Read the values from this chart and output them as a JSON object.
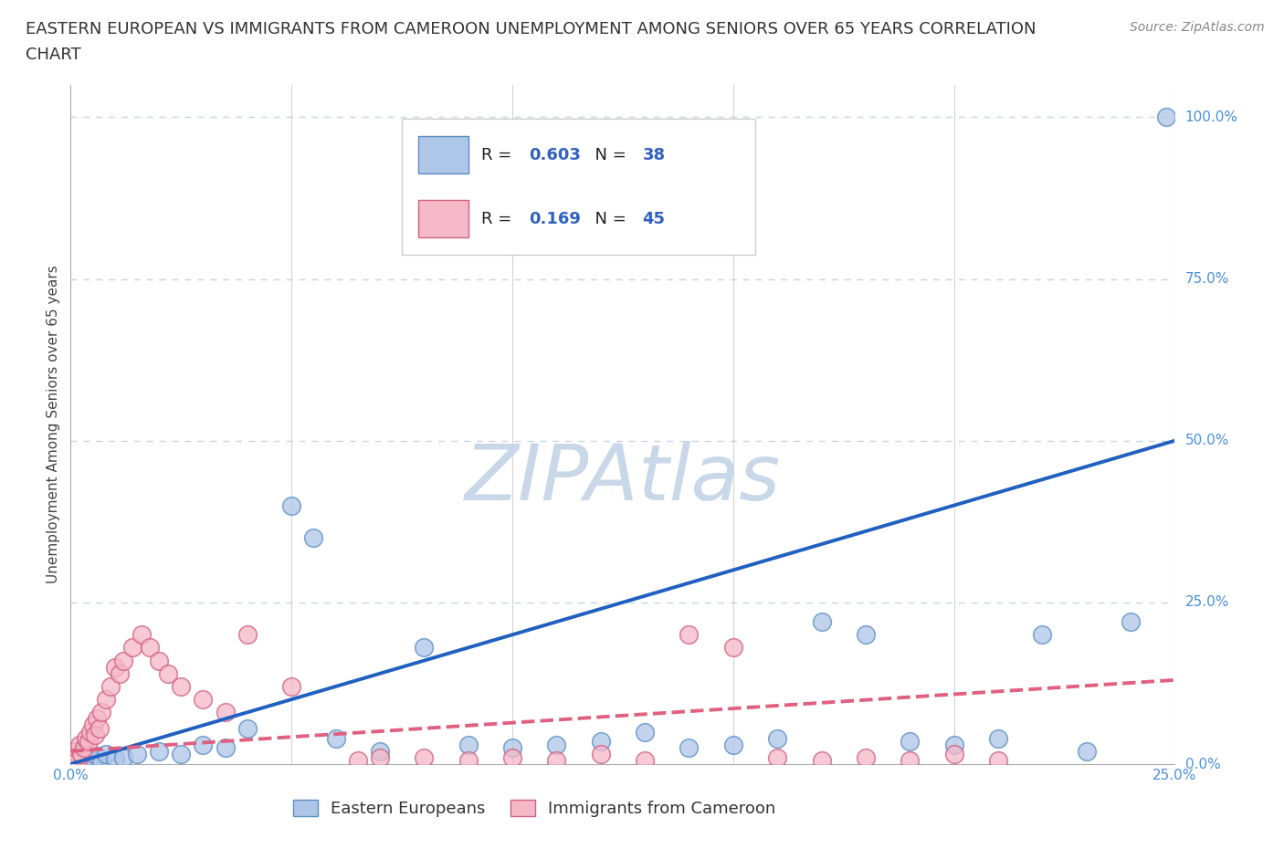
{
  "title_line1": "EASTERN EUROPEAN VS IMMIGRANTS FROM CAMEROON UNEMPLOYMENT AMONG SENIORS OVER 65 YEARS CORRELATION",
  "title_line2": "CHART",
  "source": "Source: ZipAtlas.com",
  "xlim": [
    0.0,
    25.0
  ],
  "ylim": [
    0.0,
    105.0
  ],
  "watermark": "ZIPAtlas",
  "series": [
    {
      "name": "Eastern Europeans",
      "color": "#aec6e8",
      "edge_color": "#5b8ec4",
      "R": 0.603,
      "N": 38,
      "line_color": "#2060c0",
      "line_style": "solid",
      "points_x": [
        0.1,
        0.2,
        0.3,
        0.4,
        0.5,
        0.6,
        0.7,
        0.8,
        1.0,
        1.2,
        1.5,
        2.0,
        2.5,
        3.0,
        3.5,
        4.0,
        5.0,
        5.5,
        6.0,
        7.0,
        8.0,
        9.0,
        10.0,
        11.0,
        12.0,
        13.0,
        14.0,
        15.0,
        16.0,
        17.0,
        18.0,
        19.0,
        20.0,
        21.0,
        22.0,
        23.0,
        24.0,
        24.8
      ],
      "points_y": [
        0.5,
        0.3,
        1.0,
        0.8,
        0.5,
        1.2,
        0.3,
        1.5,
        0.8,
        1.0,
        1.5,
        2.0,
        1.5,
        3.0,
        2.5,
        5.5,
        40.0,
        35.0,
        4.0,
        2.0,
        18.0,
        3.0,
        2.5,
        3.0,
        3.5,
        5.0,
        2.5,
        3.0,
        4.0,
        22.0,
        20.0,
        3.5,
        3.0,
        4.0,
        20.0,
        2.0,
        22.0,
        100.0
      ],
      "trend_x": [
        0.0,
        25.0
      ],
      "trend_y": [
        0.0,
        50.0
      ]
    },
    {
      "name": "Immigrants from Cameroon",
      "color": "#f5b8c8",
      "edge_color": "#d06080",
      "R": 0.169,
      "N": 45,
      "line_color": "#e06080",
      "line_style": "dashed",
      "points_x": [
        0.05,
        0.1,
        0.15,
        0.2,
        0.25,
        0.3,
        0.35,
        0.4,
        0.45,
        0.5,
        0.55,
        0.6,
        0.65,
        0.7,
        0.8,
        0.9,
        1.0,
        1.1,
        1.2,
        1.4,
        1.6,
        1.8,
        2.0,
        2.2,
        2.5,
        3.0,
        3.5,
        4.0,
        5.0,
        6.5,
        7.0,
        8.0,
        9.0,
        10.0,
        11.0,
        12.0,
        13.0,
        14.0,
        15.0,
        16.0,
        17.0,
        18.0,
        19.0,
        20.0,
        21.0
      ],
      "points_y": [
        1.0,
        2.0,
        0.5,
        3.0,
        1.5,
        2.5,
        4.0,
        3.5,
        5.0,
        6.0,
        4.5,
        7.0,
        5.5,
        8.0,
        10.0,
        12.0,
        15.0,
        14.0,
        16.0,
        18.0,
        20.0,
        18.0,
        16.0,
        14.0,
        12.0,
        10.0,
        8.0,
        20.0,
        12.0,
        0.5,
        1.0,
        1.0,
        0.5,
        1.0,
        0.5,
        1.5,
        0.5,
        20.0,
        18.0,
        1.0,
        0.5,
        1.0,
        0.5,
        1.5,
        0.5
      ],
      "trend_x": [
        0.0,
        25.0
      ],
      "trend_y": [
        2.0,
        13.0
      ]
    }
  ],
  "title_fontsize": 13,
  "source_fontsize": 10,
  "axis_label_fontsize": 11,
  "tick_fontsize": 11,
  "legend_fontsize": 13,
  "watermark_fontsize": 62,
  "watermark_color": "#c8d8e8",
  "background_color": "#ffffff",
  "grid_color": "#c8d4e0",
  "ylabel": "Unemployment Among Seniors over 65 years",
  "legend_R_color": "#3060c0",
  "legend_N_color": "#3060c0"
}
